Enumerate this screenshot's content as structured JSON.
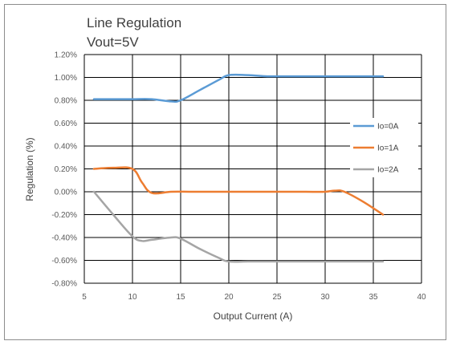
{
  "chart_data": {
    "type": "line",
    "title": "Line Regulation",
    "subtitle": "Vout=5V",
    "xlabel": "Output Current (A)",
    "ylabel": "Regulation (%)",
    "xlim": [
      5,
      40
    ],
    "ylim": [
      -0.8,
      1.2
    ],
    "x_ticks": [
      "5",
      "10",
      "15",
      "20",
      "25",
      "30",
      "35",
      "40"
    ],
    "x_tick_values": [
      5,
      10,
      15,
      20,
      25,
      30,
      35,
      40
    ],
    "y_ticks": [
      "1.20%",
      "1.00%",
      "0.80%",
      "0.60%",
      "0.40%",
      "0.20%",
      "0.00%",
      "-0.20%",
      "-0.40%",
      "-0.60%",
      "-0.80%"
    ],
    "y_tick_values": [
      1.2,
      1.0,
      0.8,
      0.6,
      0.4,
      0.2,
      0.0,
      -0.2,
      -0.4,
      -0.6,
      -0.8
    ],
    "grid": true,
    "legend_position": "right",
    "series": [
      {
        "name": "Io=0A",
        "color": "#5b9bd5",
        "x": [
          6,
          8,
          10,
          12,
          14,
          15,
          17,
          19,
          20,
          22,
          24,
          26,
          28,
          30,
          32,
          34,
          36
        ],
        "y": [
          0.81,
          0.81,
          0.81,
          0.81,
          0.79,
          0.8,
          0.89,
          0.98,
          1.02,
          1.02,
          1.01,
          1.01,
          1.01,
          1.01,
          1.01,
          1.01,
          1.01
        ]
      },
      {
        "name": "Io=1A",
        "color": "#ed7d31",
        "x": [
          6,
          8,
          10,
          11,
          12,
          14,
          16,
          18,
          20,
          22,
          24,
          26,
          28,
          30,
          31,
          32,
          34,
          36
        ],
        "y": [
          0.2,
          0.21,
          0.2,
          0.08,
          -0.01,
          0.0,
          0.0,
          0.0,
          0.0,
          0.0,
          0.0,
          0.0,
          0.0,
          0.0,
          0.01,
          0.0,
          -0.09,
          -0.2
        ]
      },
      {
        "name": "Io=2A",
        "color": "#a5a5a5",
        "x": [
          6,
          8,
          10,
          11,
          12,
          14,
          15,
          17,
          19,
          20,
          22,
          24,
          26,
          28,
          30,
          32,
          34,
          36
        ],
        "y": [
          0.0,
          -0.2,
          -0.39,
          -0.43,
          -0.42,
          -0.4,
          -0.41,
          -0.5,
          -0.58,
          -0.61,
          -0.61,
          -0.61,
          -0.61,
          -0.61,
          -0.61,
          -0.61,
          -0.61,
          -0.61
        ]
      }
    ]
  }
}
